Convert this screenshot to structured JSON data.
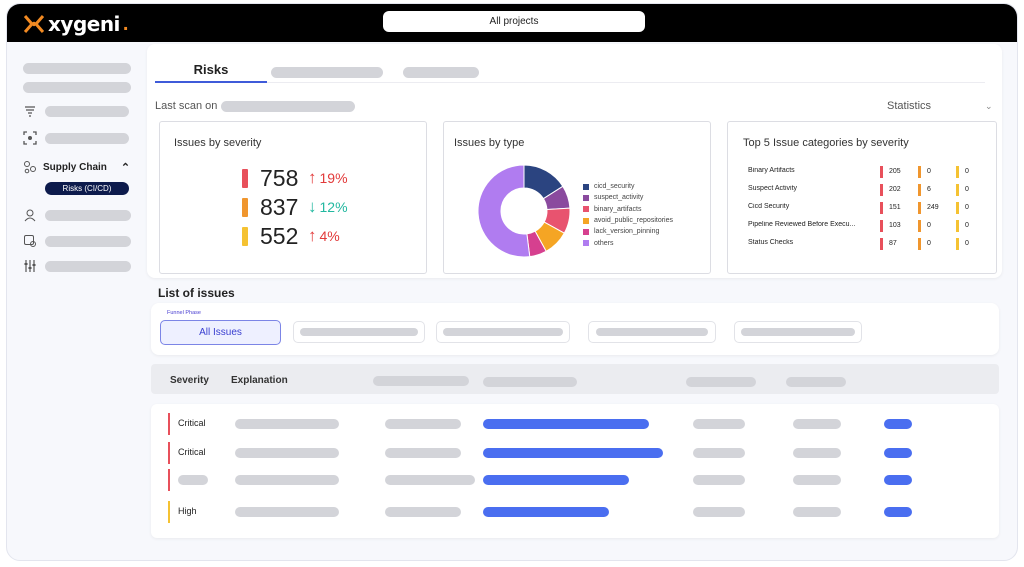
{
  "app": {
    "name": "xygeni",
    "brand_color": "#f28a22"
  },
  "project_selector": {
    "value": "All projects"
  },
  "sidebar": {
    "supply_chain_label": "Supply Chain",
    "active_item": "Risks (CI/CD)",
    "icons": [
      "filter-icon",
      "scan-icon",
      "supply-chain-icon",
      "agent-icon",
      "check-icon",
      "settings-sliders-icon"
    ]
  },
  "tabs": {
    "active": "Risks"
  },
  "scan": {
    "label": "Last scan on"
  },
  "statistics_label": "Statistics",
  "severity_panel": {
    "title": "Issues by severity",
    "rows": [
      {
        "value": "758",
        "trend": "up",
        "change": "19%",
        "color": "#e8505b"
      },
      {
        "value": "837",
        "trend": "down",
        "change": "12%",
        "color": "#f0962e"
      },
      {
        "value": "552",
        "trend": "up",
        "change": "4%",
        "color": "#f5c232"
      }
    ]
  },
  "type_panel": {
    "title": "Issues by type",
    "legend": [
      {
        "label": "cicd_security",
        "color": "#2b4480"
      },
      {
        "label": "suspect_activity",
        "color": "#8a4a9e"
      },
      {
        "label": "binary_artifacts",
        "color": "#e8536f"
      },
      {
        "label": "avoid_public_repositories",
        "color": "#f5a524"
      },
      {
        "label": "lack_version_pinning",
        "color": "#d6408f"
      },
      {
        "label": "others",
        "color": "#b07cf0"
      }
    ]
  },
  "chart_data": {
    "type": "pie",
    "variant": "donut",
    "categories": [
      "cicd_security",
      "suspect_activity",
      "binary_artifacts",
      "avoid_public_repositories",
      "lack_version_pinning",
      "others"
    ],
    "values": [
      16,
      8,
      9,
      9,
      6,
      52
    ],
    "colors": [
      "#2b4480",
      "#8a4a9e",
      "#e8536f",
      "#f5a524",
      "#d6408f",
      "#b07cf0"
    ]
  },
  "categories_panel": {
    "title": "Top 5 Issue categories by severity",
    "rows": [
      {
        "name": "Binary Artifacts",
        "critical": "205",
        "high": "0",
        "medium": "0"
      },
      {
        "name": "Suspect Activity",
        "critical": "202",
        "high": "6",
        "medium": "0"
      },
      {
        "name": "Cicd Security",
        "critical": "151",
        "high": "249",
        "medium": "0"
      },
      {
        "name": "Pipeline Reviewed Before Execu...",
        "critical": "103",
        "high": "0",
        "medium": "0"
      },
      {
        "name": "Status Checks",
        "critical": "87",
        "high": "0",
        "medium": "0"
      }
    ]
  },
  "issues": {
    "title": "List of issues",
    "funnel_label": "Funnel Phase",
    "all_issues": "All Issues",
    "columns": {
      "severity": "Severity",
      "explanation": "Explanation"
    },
    "rows": [
      {
        "severity": "Critical",
        "color": "#e8505b"
      },
      {
        "severity": "Critical",
        "color": "#e8505b"
      },
      {
        "severity": "",
        "color": "#e8505b"
      },
      {
        "severity": "High",
        "color": "#f5c232"
      }
    ]
  }
}
